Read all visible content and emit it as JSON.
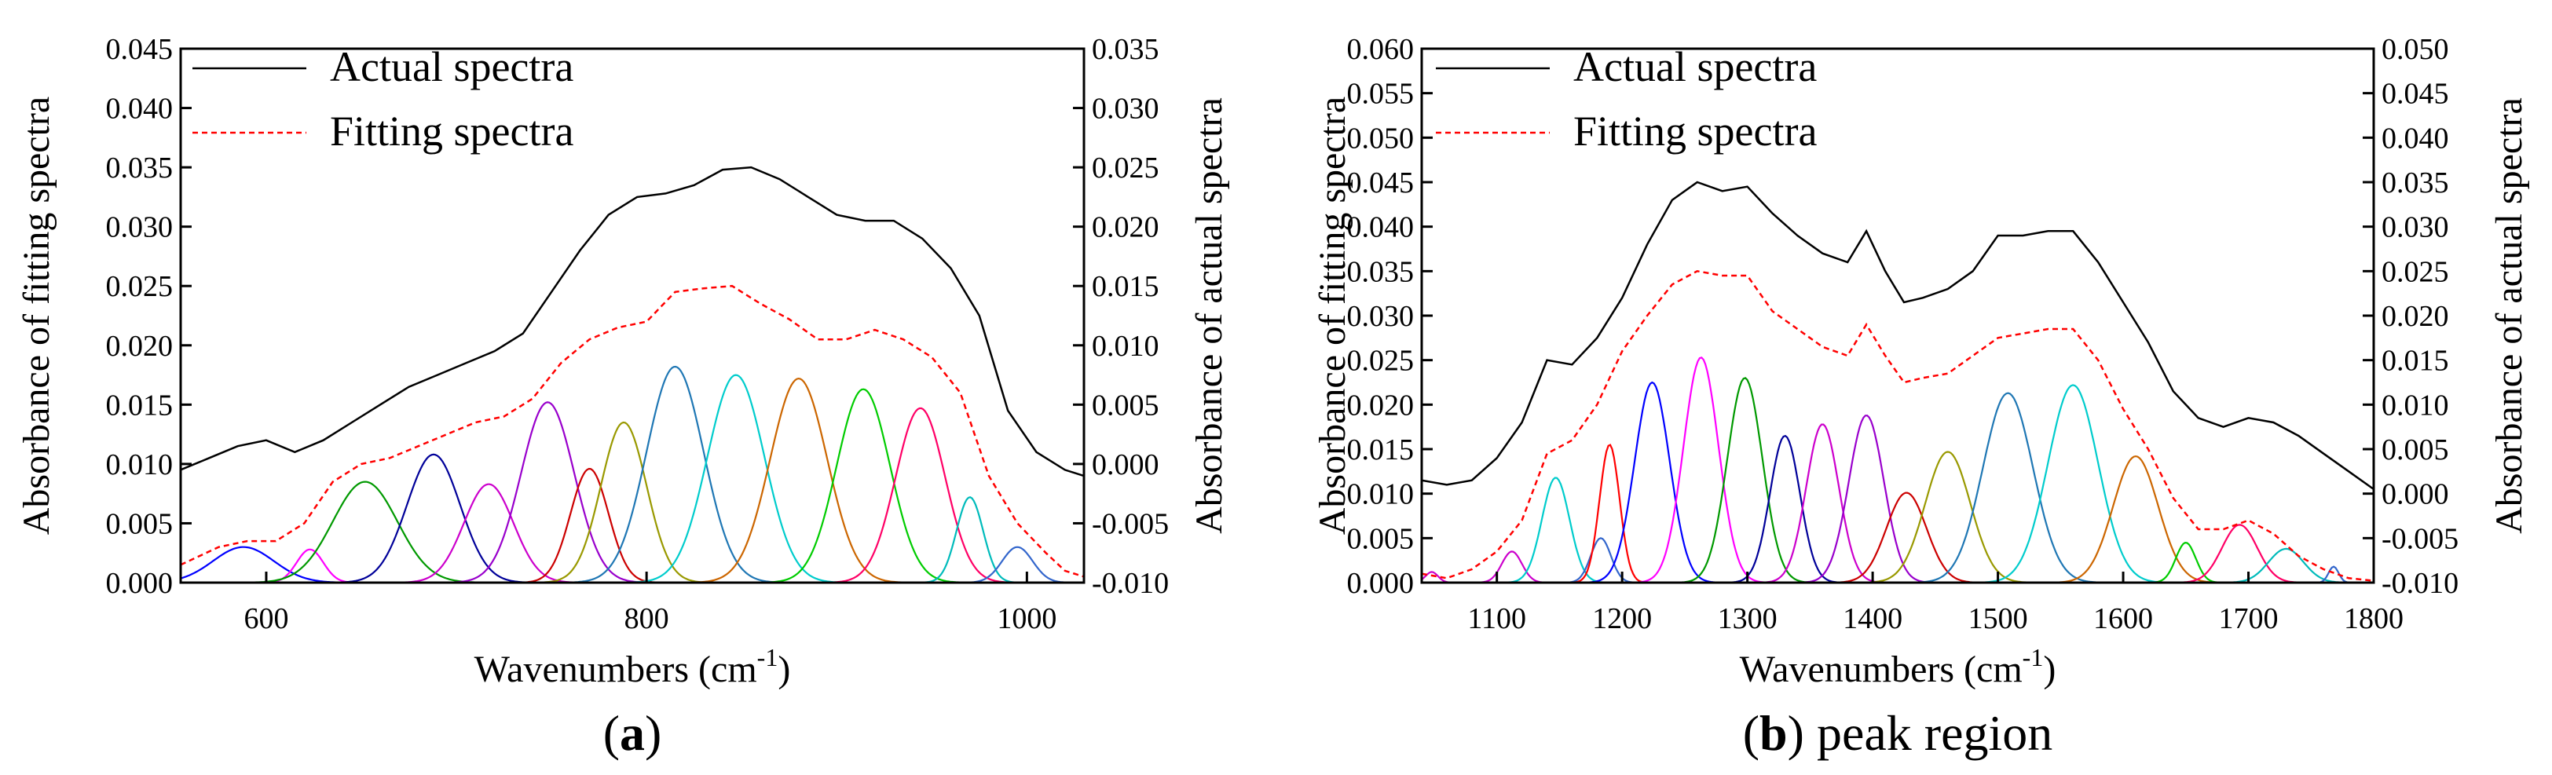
{
  "chart_data": [
    {
      "type": "line",
      "caption": {
        "before": "(",
        "bold": "a",
        "after": ")"
      },
      "xlabel": {
        "base": "Wavenumbers (cm",
        "sup": "-1",
        "close": ")"
      },
      "ylabel_left": "Absorbance of fitting spectra",
      "ylabel_right": "Absorbance of actual spectra",
      "xlim": [
        555,
        1030
      ],
      "xticks": [
        600,
        800,
        1000
      ],
      "xtick_labels": [
        "600",
        "800",
        "1000"
      ],
      "ylim_left": [
        0,
        0.045
      ],
      "yticks_left": [
        0,
        0.005,
        0.01,
        0.015,
        0.02,
        0.025,
        0.03,
        0.035,
        0.04,
        0.045
      ],
      "ytick_labels_left": [
        "0.000",
        "0.005",
        "0.010",
        "0.015",
        "0.020",
        "0.025",
        "0.030",
        "0.035",
        "0.040",
        "0.045"
      ],
      "ylim_right": [
        -0.01,
        0.035
      ],
      "yticks_right": [
        -0.01,
        -0.005,
        0,
        0.005,
        0.01,
        0.015,
        0.02,
        0.025,
        0.03,
        0.035
      ],
      "ytick_labels_right": [
        "-0.010",
        "-0.005",
        "0.000",
        "0.005",
        "0.010",
        "0.015",
        "0.020",
        "0.025",
        "0.030",
        "0.035"
      ],
      "legend": [
        {
          "label": "Actual spectra",
          "color": "#000000",
          "style": "solid"
        },
        {
          "label": "Fitting spectra",
          "color": "#ff0000",
          "style": "dashed"
        }
      ],
      "actual_spectra": {
        "axis": "right",
        "x": [
          555,
          570,
          585,
          600,
          615,
          630,
          645,
          660,
          675,
          690,
          705,
          720,
          735,
          750,
          765,
          780,
          795,
          810,
          825,
          840,
          855,
          870,
          885,
          900,
          915,
          930,
          945,
          960,
          975,
          990,
          1005,
          1020,
          1030
        ],
        "y": [
          -0.0005,
          0.0005,
          0.0015,
          0.002,
          0.001,
          0.002,
          0.0035,
          0.005,
          0.0065,
          0.0075,
          0.0085,
          0.0095,
          0.011,
          0.0145,
          0.018,
          0.021,
          0.0225,
          0.0228,
          0.0235,
          0.0248,
          0.025,
          0.024,
          0.0225,
          0.021,
          0.0205,
          0.0205,
          0.019,
          0.0165,
          0.0125,
          0.0045,
          0.001,
          -0.0005,
          -0.001
        ]
      },
      "fitting_spectra": {
        "axis": "left",
        "x": [
          555,
          575,
          590,
          605,
          620,
          635,
          650,
          665,
          680,
          695,
          710,
          725,
          740,
          755,
          770,
          785,
          800,
          815,
          830,
          845,
          860,
          875,
          890,
          905,
          920,
          935,
          950,
          965,
          980,
          995,
          1010,
          1020,
          1030
        ],
        "y": [
          0.0015,
          0.003,
          0.0035,
          0.0035,
          0.005,
          0.0085,
          0.01,
          0.0105,
          0.0115,
          0.0125,
          0.0135,
          0.014,
          0.0155,
          0.0185,
          0.0205,
          0.0215,
          0.022,
          0.0245,
          0.0248,
          0.025,
          0.0235,
          0.0222,
          0.0205,
          0.0205,
          0.0213,
          0.0205,
          0.019,
          0.016,
          0.009,
          0.005,
          0.0025,
          0.001,
          0.0005
        ]
      },
      "components": [
        {
          "center": 588,
          "height": 0.003,
          "width": 16,
          "color": "#0000ff"
        },
        {
          "center": 623,
          "height": 0.0028,
          "width": 7,
          "color": "#ff00ff"
        },
        {
          "center": 652,
          "height": 0.0085,
          "width": 17,
          "color": "#009900"
        },
        {
          "center": 688,
          "height": 0.0108,
          "width": 14,
          "color": "#000099"
        },
        {
          "center": 717,
          "height": 0.0083,
          "width": 13,
          "color": "#cc00cc"
        },
        {
          "center": 748,
          "height": 0.0152,
          "width": 14,
          "color": "#9900cc"
        },
        {
          "center": 770,
          "height": 0.0096,
          "width": 10,
          "color": "#cc0000"
        },
        {
          "center": 788,
          "height": 0.0135,
          "width": 12,
          "color": "#999900"
        },
        {
          "center": 815,
          "height": 0.0182,
          "width": 15,
          "color": "#1f77b4"
        },
        {
          "center": 847,
          "height": 0.0175,
          "width": 15,
          "color": "#00cccc"
        },
        {
          "center": 880,
          "height": 0.0172,
          "width": 15,
          "color": "#cc6600"
        },
        {
          "center": 914,
          "height": 0.0163,
          "width": 14,
          "color": "#00cc00"
        },
        {
          "center": 944,
          "height": 0.0147,
          "width": 13,
          "color": "#ff0066"
        },
        {
          "center": 970,
          "height": 0.0072,
          "width": 7,
          "color": "#00bbbb"
        },
        {
          "center": 995,
          "height": 0.003,
          "width": 8,
          "color": "#3366cc"
        }
      ]
    },
    {
      "type": "line",
      "caption": {
        "before": "(",
        "bold": "b",
        "after": ") peak region"
      },
      "xlabel": {
        "base": "Wavenumbers (cm",
        "sup": "-1",
        "close": ")"
      },
      "ylabel_left": "Absorbance of fitting spectra",
      "ylabel_right": "Absorbance of actual spectra",
      "xlim": [
        1040,
        1800
      ],
      "xticks": [
        1100,
        1200,
        1300,
        1400,
        1500,
        1600,
        1700,
        1800
      ],
      "xtick_labels": [
        "1100",
        "1200",
        "1300",
        "1400",
        "1500",
        "1600",
        "1700",
        "1800"
      ],
      "ylim_left": [
        0,
        0.06
      ],
      "yticks_left": [
        0,
        0.005,
        0.01,
        0.015,
        0.02,
        0.025,
        0.03,
        0.035,
        0.04,
        0.045,
        0.05,
        0.055,
        0.06
      ],
      "ytick_labels_left": [
        "0.000",
        "0.005",
        "0.010",
        "0.015",
        "0.020",
        "0.025",
        "0.030",
        "0.035",
        "0.040",
        "0.045",
        "0.050",
        "0.055",
        "0.060"
      ],
      "ylim_right": [
        -0.01,
        0.05
      ],
      "yticks_right": [
        -0.01,
        -0.005,
        0,
        0.005,
        0.01,
        0.015,
        0.02,
        0.025,
        0.03,
        0.035,
        0.04,
        0.045,
        0.05
      ],
      "ytick_labels_right": [
        "-0.010",
        "-0.005",
        "0.000",
        "0.005",
        "0.010",
        "0.015",
        "0.020",
        "0.025",
        "0.030",
        "0.035",
        "0.040",
        "0.045",
        "0.050"
      ],
      "legend": [
        {
          "label": "Actual spectra",
          "color": "#000000",
          "style": "solid"
        },
        {
          "label": "Fitting spectra",
          "color": "#ff0000",
          "style": "dashed"
        }
      ],
      "actual_spectra": {
        "axis": "right",
        "x": [
          1040,
          1060,
          1080,
          1100,
          1120,
          1140,
          1160,
          1180,
          1200,
          1220,
          1240,
          1260,
          1280,
          1300,
          1320,
          1340,
          1360,
          1380,
          1395,
          1410,
          1425,
          1440,
          1460,
          1480,
          1500,
          1520,
          1540,
          1560,
          1580,
          1600,
          1620,
          1640,
          1660,
          1680,
          1700,
          1720,
          1740,
          1760,
          1780,
          1800
        ],
        "y": [
          0.0015,
          0.001,
          0.0015,
          0.004,
          0.008,
          0.015,
          0.0145,
          0.0175,
          0.022,
          0.028,
          0.033,
          0.035,
          0.034,
          0.0345,
          0.0315,
          0.029,
          0.027,
          0.026,
          0.0295,
          0.025,
          0.0215,
          0.022,
          0.023,
          0.025,
          0.029,
          0.029,
          0.0295,
          0.0295,
          0.026,
          0.0215,
          0.017,
          0.0115,
          0.0085,
          0.0075,
          0.0085,
          0.008,
          0.0065,
          0.0045,
          0.0025,
          0.0005
        ]
      },
      "fitting_spectra": {
        "axis": "left",
        "x": [
          1040,
          1060,
          1080,
          1100,
          1120,
          1140,
          1160,
          1180,
          1200,
          1220,
          1240,
          1260,
          1280,
          1300,
          1320,
          1340,
          1360,
          1380,
          1395,
          1410,
          1425,
          1440,
          1460,
          1480,
          1500,
          1520,
          1540,
          1560,
          1580,
          1600,
          1620,
          1640,
          1660,
          1680,
          1700,
          1720,
          1740,
          1760,
          1780,
          1800
        ],
        "y": [
          0.001,
          0.0005,
          0.0015,
          0.0035,
          0.007,
          0.0145,
          0.016,
          0.02,
          0.026,
          0.03,
          0.0335,
          0.035,
          0.0345,
          0.0345,
          0.0305,
          0.0285,
          0.0265,
          0.0255,
          0.029,
          0.0255,
          0.0225,
          0.023,
          0.0235,
          0.0255,
          0.0275,
          0.028,
          0.0285,
          0.0285,
          0.025,
          0.0195,
          0.015,
          0.0095,
          0.006,
          0.006,
          0.007,
          0.0055,
          0.003,
          0.0015,
          0.0005,
          0.0002
        ]
      },
      "components": [
        {
          "center": 1048,
          "height": 0.0012,
          "width": 5,
          "color": "#cc00cc"
        },
        {
          "center": 1112,
          "height": 0.0035,
          "width": 8,
          "color": "#cc00cc"
        },
        {
          "center": 1147,
          "height": 0.0118,
          "width": 11,
          "color": "#00cccc"
        },
        {
          "center": 1183,
          "height": 0.005,
          "width": 8,
          "color": "#3366cc"
        },
        {
          "center": 1190,
          "height": 0.0155,
          "width": 8,
          "color": "#ff0000"
        },
        {
          "center": 1224,
          "height": 0.0225,
          "width": 14,
          "color": "#0000ff"
        },
        {
          "center": 1263,
          "height": 0.0253,
          "width": 14,
          "color": "#ff00ff"
        },
        {
          "center": 1298,
          "height": 0.023,
          "width": 14,
          "color": "#009900"
        },
        {
          "center": 1330,
          "height": 0.0165,
          "width": 12,
          "color": "#000099"
        },
        {
          "center": 1360,
          "height": 0.0178,
          "width": 13,
          "color": "#cc00cc"
        },
        {
          "center": 1395,
          "height": 0.0188,
          "width": 14,
          "color": "#9900cc"
        },
        {
          "center": 1427,
          "height": 0.0101,
          "width": 16,
          "color": "#cc0000"
        },
        {
          "center": 1460,
          "height": 0.0147,
          "width": 18,
          "color": "#999900"
        },
        {
          "center": 1508,
          "height": 0.0213,
          "width": 20,
          "color": "#1f77b4"
        },
        {
          "center": 1560,
          "height": 0.0222,
          "width": 20,
          "color": "#00cccc"
        },
        {
          "center": 1610,
          "height": 0.0142,
          "width": 18,
          "color": "#cc6600"
        },
        {
          "center": 1650,
          "height": 0.0045,
          "width": 8,
          "color": "#00cc00"
        },
        {
          "center": 1693,
          "height": 0.0065,
          "width": 14,
          "color": "#ff0066"
        },
        {
          "center": 1730,
          "height": 0.0038,
          "width": 14,
          "color": "#00bbbb"
        },
        {
          "center": 1768,
          "height": 0.0018,
          "width": 4,
          "color": "#3366cc"
        }
      ]
    }
  ]
}
